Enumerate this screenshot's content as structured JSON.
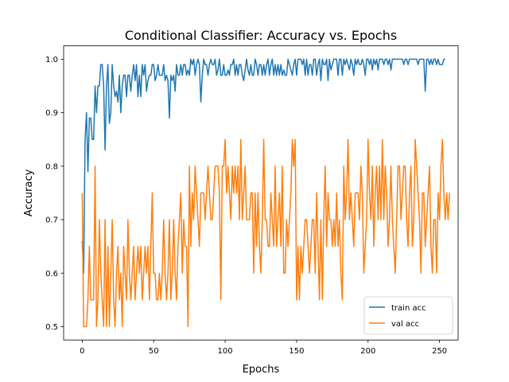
{
  "chart_data": {
    "type": "line",
    "title": "Conditional Classifier: Accuracy vs. Epochs",
    "xlabel": "Epochs",
    "ylabel": "Accuracy",
    "xlim": [
      -13,
      263
    ],
    "ylim": [
      0.475,
      1.025
    ],
    "xticks": [
      0,
      50,
      100,
      150,
      200,
      250
    ],
    "yticks": [
      0.5,
      0.6,
      0.7,
      0.8,
      0.9,
      1.0
    ],
    "ytick_labels": [
      "0.5",
      "0.6",
      "0.7",
      "0.8",
      "0.9",
      "1.0"
    ],
    "grid": false,
    "legend": "lower-right",
    "series": [
      {
        "name": "train acc",
        "color": "#1f77b4",
        "values": [
          0.66,
          0.6,
          0.85,
          0.9,
          0.79,
          0.89,
          0.89,
          0.85,
          0.85,
          0.95,
          0.9,
          0.95,
          0.95,
          0.99,
          0.99,
          0.95,
          0.83,
          0.95,
          0.99,
          0.88,
          0.9,
          0.99,
          0.95,
          0.93,
          0.94,
          0.92,
          0.97,
          0.9,
          0.95,
          0.97,
          0.97,
          0.93,
          0.97,
          0.97,
          0.94,
          0.97,
          0.99,
          0.96,
          0.99,
          0.93,
          0.97,
          0.93,
          0.99,
          0.97,
          0.99,
          0.94,
          0.96,
          0.97,
          0.97,
          0.99,
          0.99,
          0.96,
          0.97,
          0.99,
          0.97,
          0.97,
          0.97,
          0.99,
          0.96,
          0.97,
          0.96,
          0.89,
          0.97,
          0.96,
          0.97,
          0.94,
          0.99,
          0.97,
          0.97,
          0.99,
          0.97,
          0.99,
          0.99,
          0.97,
          0.98,
          0.97,
          1.0,
          0.99,
          1.0,
          0.97,
          0.99,
          1.0,
          0.99,
          0.92,
          0.97,
          1.0,
          0.99,
          0.99,
          0.97,
          0.99,
          1.0,
          0.99,
          0.99,
          1.0,
          0.97,
          0.98,
          1.0,
          0.97,
          0.97,
          0.99,
          0.97,
          0.97,
          0.98,
          0.97,
          0.99,
          0.99,
          1.0,
          0.97,
          0.99,
          0.97,
          0.99,
          0.99,
          0.97,
          0.96,
          0.98,
          1.0,
          0.98,
          0.97,
          0.99,
          0.97,
          0.97,
          1.0,
          0.99,
          0.97,
          0.99,
          0.99,
          0.97,
          0.99,
          0.97,
          0.99,
          1.0,
          0.97,
          0.99,
          1.0,
          0.97,
          0.99,
          0.97,
          0.99,
          0.97,
          0.99,
          0.97,
          0.98,
          0.97,
          0.97,
          1.0,
          0.99,
          0.98,
          0.97,
          0.99,
          1.0,
          0.97,
          1.0,
          1.0,
          1.0,
          0.99,
          1.0,
          0.97,
          1.0,
          0.97,
          0.99,
          0.99,
          0.97,
          1.0,
          1.0,
          0.97,
          0.99,
          1.0,
          0.96,
          1.0,
          0.99,
          0.99,
          1.0,
          0.96,
          1.0,
          0.98,
          0.99,
          1.0,
          1.0,
          1.0,
          0.97,
          1.0,
          1.0,
          0.97,
          1.0,
          0.99,
          1.0,
          0.99,
          0.98,
          1.0,
          0.99,
          0.97,
          1.0,
          0.99,
          1.0,
          0.99,
          0.99,
          1.0,
          0.99,
          0.97,
          1.0,
          1.0,
          0.99,
          1.0,
          0.98,
          1.0,
          0.99,
          1.0,
          0.98,
          1.0,
          1.0,
          1.0,
          0.99,
          1.0,
          1.0,
          0.99,
          1.0,
          0.98,
          1.0,
          1.0,
          1.0,
          1.0,
          1.0,
          1.0,
          1.0,
          1.0,
          0.99,
          1.0,
          1.0,
          0.99,
          1.0,
          1.0,
          1.0,
          1.0,
          1.0,
          1.0,
          0.99,
          1.0,
          1.0,
          1.0,
          1.0,
          0.94,
          1.0,
          1.0,
          0.99,
          1.0,
          0.99,
          1.0,
          1.0,
          0.99,
          1.0,
          0.99,
          0.99,
          0.99,
          1.0,
          1.0
        ]
      },
      {
        "name": "val acc",
        "color": "#ff7f0e",
        "values": [
          0.75,
          0.5,
          0.5,
          0.5,
          0.55,
          0.65,
          0.55,
          0.55,
          0.55,
          0.8,
          0.5,
          0.55,
          0.7,
          0.6,
          0.55,
          0.5,
          0.7,
          0.5,
          0.65,
          0.5,
          0.6,
          0.7,
          0.55,
          0.5,
          0.6,
          0.65,
          0.55,
          0.6,
          0.5,
          0.65,
          0.6,
          0.55,
          0.7,
          0.6,
          0.55,
          0.6,
          0.65,
          0.55,
          0.6,
          0.65,
          0.6,
          0.65,
          0.55,
          0.6,
          0.65,
          0.6,
          0.65,
          0.55,
          0.65,
          0.75,
          0.6,
          0.6,
          0.55,
          0.55,
          0.6,
          0.55,
          0.6,
          0.7,
          0.6,
          0.55,
          0.6,
          0.7,
          0.55,
          0.6,
          0.7,
          0.6,
          0.55,
          0.65,
          0.7,
          0.75,
          0.6,
          0.7,
          0.65,
          0.65,
          0.5,
          0.8,
          0.65,
          0.75,
          0.7,
          0.8,
          0.75,
          0.7,
          0.65,
          0.75,
          0.75,
          0.75,
          0.7,
          0.75,
          0.8,
          0.75,
          0.7,
          0.7,
          0.75,
          0.8,
          0.8,
          0.8,
          0.75,
          0.55,
          0.8,
          0.8,
          0.85,
          0.75,
          0.8,
          0.75,
          0.7,
          0.8,
          0.75,
          0.8,
          0.75,
          0.8,
          0.7,
          0.85,
          0.7,
          0.75,
          0.8,
          0.7,
          0.7,
          0.7,
          0.75,
          0.75,
          0.6,
          0.75,
          0.65,
          0.75,
          0.65,
          0.6,
          0.7,
          0.85,
          0.7,
          0.7,
          0.65,
          0.65,
          0.75,
          0.7,
          0.65,
          0.8,
          0.65,
          0.7,
          0.75,
          0.65,
          0.8,
          0.6,
          0.6,
          0.7,
          0.65,
          0.7,
          0.75,
          0.85,
          0.8,
          0.85,
          0.55,
          0.65,
          0.55,
          0.65,
          0.6,
          0.65,
          0.7,
          0.7,
          0.65,
          0.6,
          0.65,
          0.7,
          0.7,
          0.6,
          0.75,
          0.65,
          0.55,
          0.7,
          0.55,
          0.7,
          0.8,
          0.65,
          0.75,
          0.7,
          0.7,
          0.65,
          0.7,
          0.65,
          0.75,
          0.65,
          0.7,
          0.6,
          0.55,
          0.8,
          0.7,
          0.75,
          0.85,
          0.7,
          0.75,
          0.7,
          0.65,
          0.75,
          0.75,
          0.75,
          0.7,
          0.8,
          0.75,
          0.6,
          0.65,
          0.7,
          0.85,
          0.75,
          0.7,
          0.8,
          0.65,
          0.75,
          0.8,
          0.7,
          0.8,
          0.7,
          0.85,
          0.7,
          0.8,
          0.75,
          0.65,
          0.7,
          0.8,
          0.7,
          0.65,
          0.6,
          0.7,
          0.8,
          0.8,
          0.7,
          0.75,
          0.8,
          0.8,
          0.7,
          0.65,
          0.75,
          0.8,
          0.65,
          0.7,
          0.85,
          0.8,
          0.75,
          0.7,
          0.6,
          0.75,
          0.75,
          0.65,
          0.7,
          0.75,
          0.8,
          0.65,
          0.6,
          0.7,
          0.7,
          0.6,
          0.75,
          0.7,
          0.8,
          0.85,
          0.75,
          0.7,
          0.75,
          0.7,
          0.75
        ]
      }
    ]
  }
}
